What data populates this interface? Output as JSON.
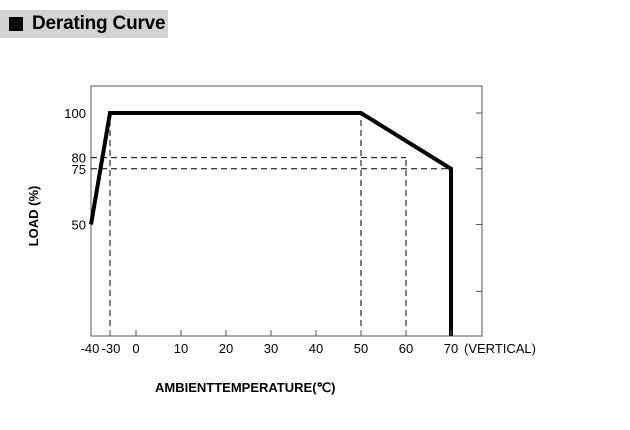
{
  "header": {
    "title": "Derating Curve"
  },
  "chart_data": {
    "type": "line",
    "xlabel": "AMBIENTTEMPERATURE(℃)",
    "ylabel": "LOAD (%)",
    "x_ticks": [
      "-40",
      "-30",
      "0",
      "10",
      "20",
      "30",
      "40",
      "50",
      "60",
      "70"
    ],
    "x_tick_values": [
      -40,
      -30,
      0,
      10,
      20,
      30,
      40,
      50,
      60,
      70
    ],
    "x_suffix": "(VERTICAL)",
    "y_ticks": [
      "100",
      "80",
      "75",
      "50"
    ],
    "y_tick_values": [
      100,
      80,
      75,
      50
    ],
    "series": [
      {
        "x": [
          -40,
          -30,
          50,
          70,
          70
        ],
        "y": [
          50,
          100,
          100,
          75,
          0
        ]
      }
    ],
    "reference_lines": [
      {
        "x": [
          -30,
          -30
        ],
        "y": [
          0,
          100
        ]
      },
      {
        "x": [
          50,
          50
        ],
        "y": [
          0,
          100
        ]
      },
      {
        "x": [
          60,
          60
        ],
        "y": [
          0,
          80
        ]
      },
      {
        "x": [
          -40,
          60
        ],
        "y": [
          80,
          80
        ]
      },
      {
        "x": [
          -40,
          70
        ],
        "y": [
          75,
          75
        ]
      }
    ],
    "grid": false,
    "line_color": "#000000"
  }
}
